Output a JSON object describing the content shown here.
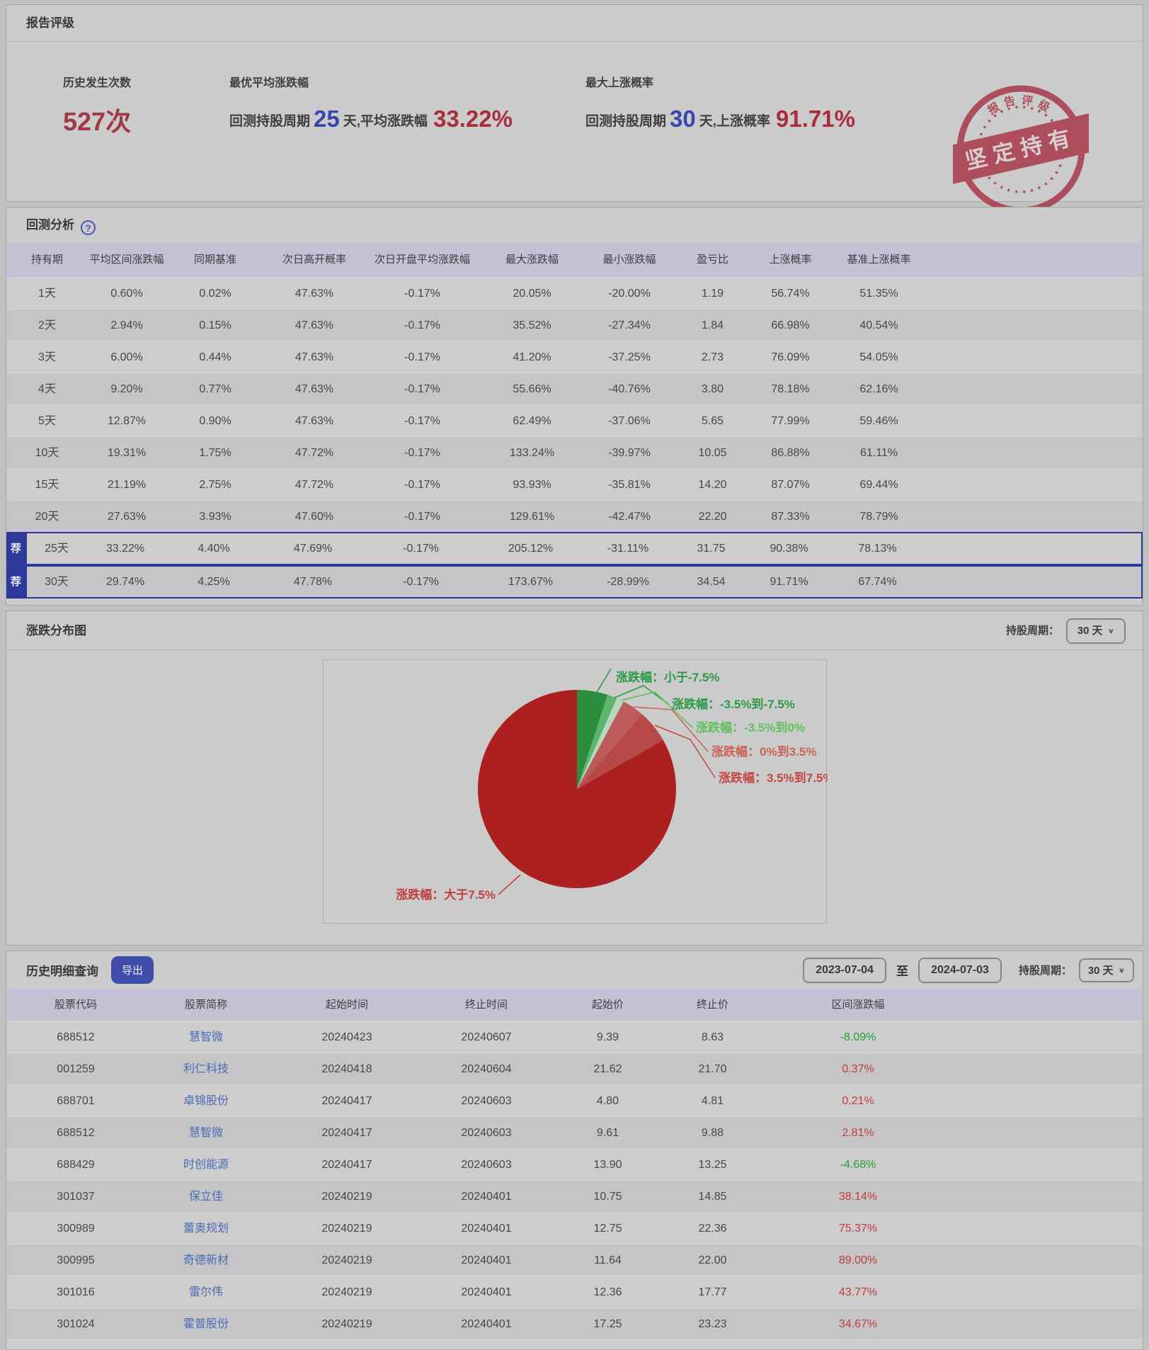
{
  "icons": {
    "chevron_down": "∨",
    "help": "?"
  },
  "report_rating": {
    "title": "报告评级",
    "stats": [
      {
        "label": "历史发生次数",
        "value": "527次"
      },
      {
        "label": "最优平均涨跌幅",
        "prefix": "回测持股周期",
        "num": "25",
        "mid": "天,平均涨跌幅",
        "value": "33.22%"
      },
      {
        "label": "最大上涨概率",
        "prefix": "回测持股周期",
        "num": "30",
        "mid": "天,上涨概率",
        "value": "91.71%"
      }
    ],
    "stamp": {
      "arc_text": "报告评级",
      "banner": "坚定持有"
    }
  },
  "backtest": {
    "title": "回测分析",
    "badge": "荐",
    "columns": [
      "持有期",
      "平均区间涨跌幅",
      "同期基准",
      "次日高开概率",
      "次日开盘平均涨跌幅",
      "最大涨跌幅",
      "最小涨跌幅",
      "盈亏比",
      "上涨概率",
      "基准上涨概率"
    ],
    "rows": [
      {
        "recommended": false,
        "cells": [
          "1天",
          "0.60%",
          "0.02%",
          "47.63%",
          "-0.17%",
          "20.05%",
          "-20.00%",
          "1.19",
          "56.74%",
          "51.35%"
        ]
      },
      {
        "recommended": false,
        "cells": [
          "2天",
          "2.94%",
          "0.15%",
          "47.63%",
          "-0.17%",
          "35.52%",
          "-27.34%",
          "1.84",
          "66.98%",
          "40.54%"
        ]
      },
      {
        "recommended": false,
        "cells": [
          "3天",
          "6.00%",
          "0.44%",
          "47.63%",
          "-0.17%",
          "41.20%",
          "-37.25%",
          "2.73",
          "76.09%",
          "54.05%"
        ]
      },
      {
        "recommended": false,
        "cells": [
          "4天",
          "9.20%",
          "0.77%",
          "47.63%",
          "-0.17%",
          "55.66%",
          "-40.76%",
          "3.80",
          "78.18%",
          "62.16%"
        ]
      },
      {
        "recommended": false,
        "cells": [
          "5天",
          "12.87%",
          "0.90%",
          "47.63%",
          "-0.17%",
          "62.49%",
          "-37.06%",
          "5.65",
          "77.99%",
          "59.46%"
        ]
      },
      {
        "recommended": false,
        "cells": [
          "10天",
          "19.31%",
          "1.75%",
          "47.72%",
          "-0.17%",
          "133.24%",
          "-39.97%",
          "10.05",
          "86.88%",
          "61.11%"
        ]
      },
      {
        "recommended": false,
        "cells": [
          "15天",
          "21.19%",
          "2.75%",
          "47.72%",
          "-0.17%",
          "93.93%",
          "-35.81%",
          "14.20",
          "87.07%",
          "69.44%"
        ]
      },
      {
        "recommended": false,
        "cells": [
          "20天",
          "27.63%",
          "3.93%",
          "47.60%",
          "-0.17%",
          "129.61%",
          "-42.47%",
          "22.20",
          "87.33%",
          "78.79%"
        ]
      },
      {
        "recommended": true,
        "cells": [
          "25天",
          "33.22%",
          "4.40%",
          "47.69%",
          "-0.17%",
          "205.12%",
          "-31.11%",
          "31.75",
          "90.38%",
          "78.13%"
        ]
      },
      {
        "recommended": true,
        "cells": [
          "30天",
          "29.74%",
          "4.25%",
          "47.78%",
          "-0.17%",
          "173.67%",
          "-28.99%",
          "34.54",
          "91.71%",
          "67.74%"
        ]
      }
    ]
  },
  "distribution": {
    "title": "涨跌分布图",
    "period_label": "持股周期：",
    "period_value": "30 天"
  },
  "chart_data": {
    "type": "pie",
    "labels": [
      "涨跌幅：小于-7.5%",
      "涨跌幅：-3.5%到-7.5%",
      "涨跌幅：-3.5%到0%",
      "涨跌幅：0%到3.5%",
      "涨跌幅：3.5%到7.5%",
      "涨跌幅：大于7.5%"
    ],
    "values": [
      5.0,
      1.6,
      1.2,
      3.6,
      5.4,
      83.2
    ],
    "colors": [
      "#2b8c3e",
      "#5cb56e",
      "#b5d8bd",
      "#bd5a5a",
      "#b64848",
      "#ac2022"
    ],
    "label_colors": [
      "#2a9a47",
      "#2a9a47",
      "#62c05d",
      "#cb6258",
      "#c44743",
      "#c2403e"
    ],
    "legend_position": "leader-line-labels",
    "start_angle": "12-oclock-clockwise"
  },
  "history": {
    "title": "历史明细查询",
    "export_label": "导出",
    "date_from": "2023-07-04",
    "to_label": "至",
    "date_to": "2024-07-03",
    "period_label": "持股周期：",
    "period_value": "30 天",
    "columns": [
      "股票代码",
      "股票简称",
      "起始时间",
      "终止时间",
      "起始价",
      "终止价",
      "区间涨跌幅"
    ],
    "rows": [
      [
        "688512",
        "慧智微",
        "20240423",
        "20240607",
        "9.39",
        "8.63",
        "-8.09%"
      ],
      [
        "001259",
        "利仁科技",
        "20240418",
        "20240604",
        "21.62",
        "21.70",
        "0.37%"
      ],
      [
        "688701",
        "卓锦股份",
        "20240417",
        "20240603",
        "4.80",
        "4.81",
        "0.21%"
      ],
      [
        "688512",
        "慧智微",
        "20240417",
        "20240603",
        "9.61",
        "9.88",
        "2.81%"
      ],
      [
        "688429",
        "时创能源",
        "20240417",
        "20240603",
        "13.90",
        "13.25",
        "-4.68%"
      ],
      [
        "301037",
        "保立佳",
        "20240219",
        "20240401",
        "10.75",
        "14.85",
        "38.14%"
      ],
      [
        "300989",
        "蕾奥规划",
        "20240219",
        "20240401",
        "12.75",
        "22.36",
        "75.37%"
      ],
      [
        "300995",
        "奇德新材",
        "20240219",
        "20240401",
        "11.64",
        "22.00",
        "89.00%"
      ],
      [
        "301016",
        "雷尔伟",
        "20240219",
        "20240401",
        "12.36",
        "17.77",
        "43.77%"
      ],
      [
        "301024",
        "霍普股份",
        "20240219",
        "20240401",
        "17.25",
        "23.23",
        "34.67%"
      ]
    ]
  }
}
